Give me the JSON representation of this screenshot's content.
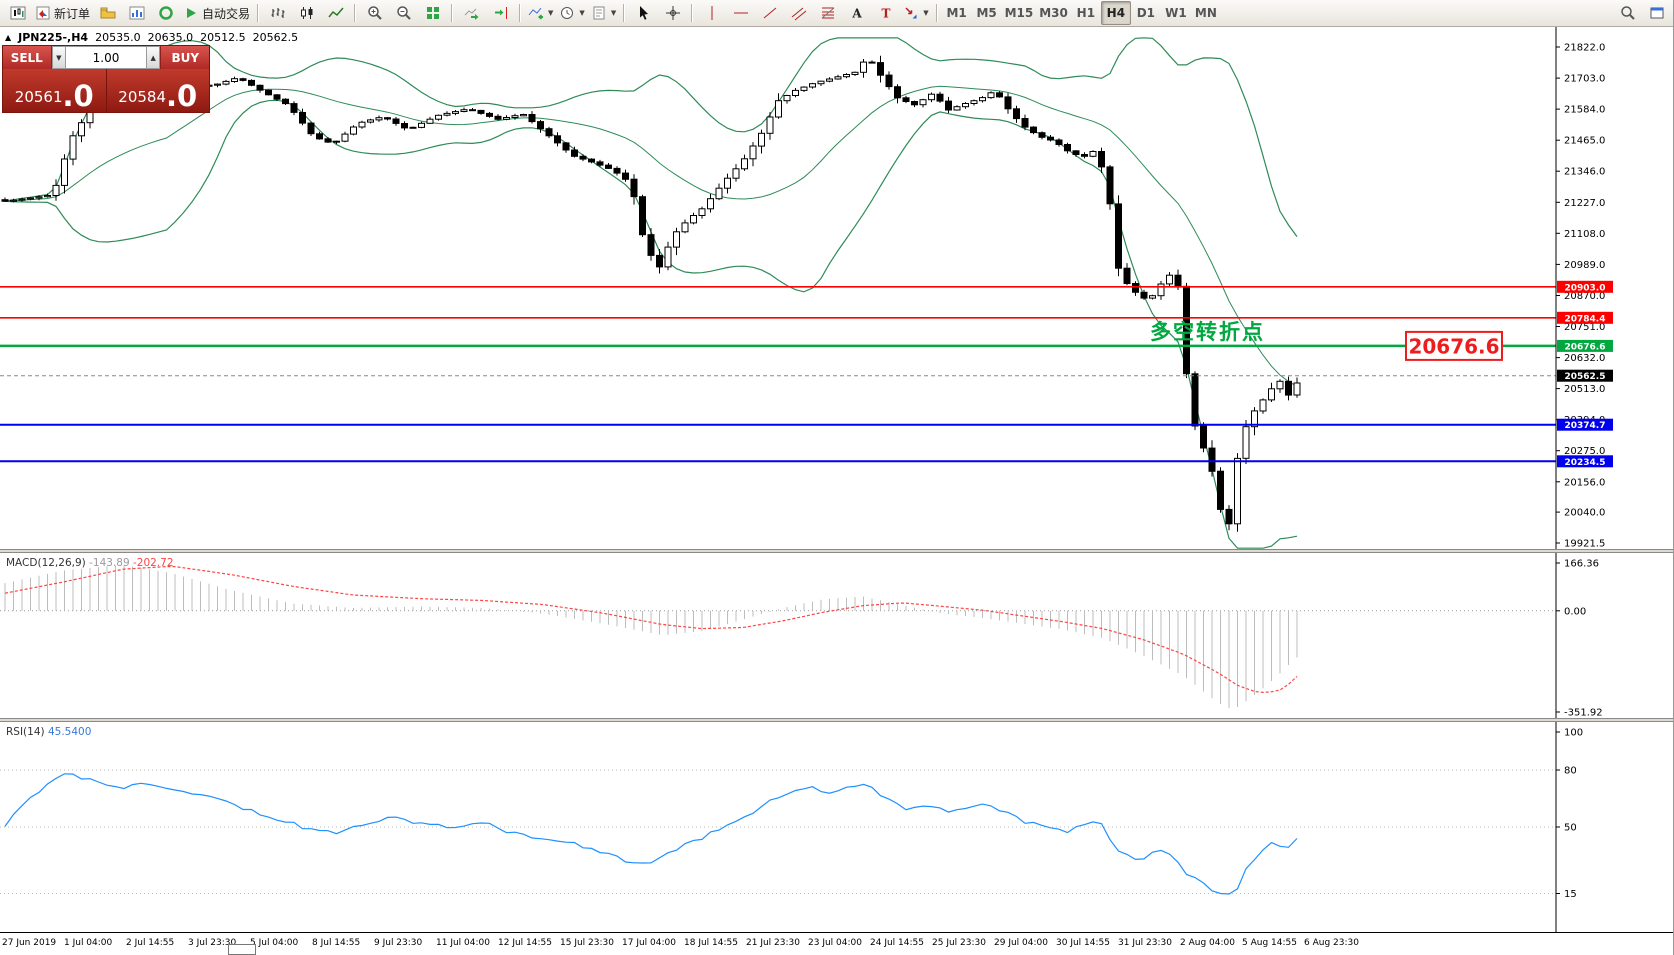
{
  "toolbar": {
    "groups": [
      {
        "name": "file",
        "items": [
          {
            "name": "new-chart",
            "icon": "chart-candles"
          },
          {
            "name": "new-order",
            "icon": "new-order",
            "label": "新订单"
          },
          {
            "name": "profiles",
            "icon": "profiles"
          },
          {
            "name": "data-window",
            "icon": "chart-blue"
          },
          {
            "name": "refresh",
            "icon": "circle-green"
          },
          {
            "name": "auto-trading",
            "icon": "play-green",
            "label": "自动交易"
          }
        ]
      },
      {
        "name": "chart-type",
        "items": [
          {
            "name": "bars-chart",
            "icon": "bars"
          },
          {
            "name": "candlestick-chart",
            "icon": "candles"
          },
          {
            "name": "line-chart",
            "icon": "line"
          }
        ]
      },
      {
        "name": "zoom",
        "items": [
          {
            "name": "zoom-in",
            "icon": "zoom-in"
          },
          {
            "name": "zoom-out",
            "icon": "zoom-out"
          },
          {
            "name": "tile-windows",
            "icon": "grid-green"
          }
        ]
      },
      {
        "name": "scroll",
        "items": [
          {
            "name": "auto-scroll",
            "icon": "auto-scroll"
          },
          {
            "name": "chart-shift",
            "icon": "chart-shift"
          }
        ]
      },
      {
        "name": "insert",
        "items": [
          {
            "name": "indicators",
            "icon": "indicator-plus",
            "dropdown": true
          },
          {
            "name": "periods",
            "icon": "clock",
            "dropdown": true
          },
          {
            "name": "templates",
            "icon": "template",
            "dropdown": true
          }
        ]
      },
      {
        "name": "cursor",
        "items": [
          {
            "name": "cursor",
            "icon": "cursor-arrow"
          },
          {
            "name": "crosshair",
            "icon": "crosshair"
          }
        ]
      },
      {
        "name": "objects",
        "items": [
          {
            "name": "vertical-line",
            "icon": "vline"
          },
          {
            "name": "horizontal-line",
            "icon": "hline"
          },
          {
            "name": "trendline",
            "icon": "trendline"
          },
          {
            "name": "equidistant-channel",
            "icon": "channel"
          },
          {
            "name": "fibonacci",
            "icon": "fibo"
          },
          {
            "name": "text",
            "icon": "text-a"
          },
          {
            "name": "text-label",
            "icon": "text-t"
          },
          {
            "name": "arrows",
            "icon": "arrow-shape",
            "dropdown": true
          }
        ]
      },
      {
        "name": "timeframes",
        "items": [
          {
            "name": "tf-m1",
            "label": "M1"
          },
          {
            "name": "tf-m5",
            "label": "M5"
          },
          {
            "name": "tf-m15",
            "label": "M15"
          },
          {
            "name": "tf-m30",
            "label": "M30"
          },
          {
            "name": "tf-h1",
            "label": "H1"
          },
          {
            "name": "tf-h4",
            "label": "H4",
            "active": true
          },
          {
            "name": "tf-d1",
            "label": "D1"
          },
          {
            "name": "tf-w1",
            "label": "W1"
          },
          {
            "name": "tf-mn",
            "label": "MN"
          }
        ]
      }
    ],
    "right_items": [
      {
        "name": "search",
        "icon": "magnifier"
      },
      {
        "name": "arrange-windows",
        "icon": "window"
      }
    ]
  },
  "symbol_info": {
    "collapse_icon": "▲",
    "symbol_period": "JPN225-,H4",
    "open": "20535.0",
    "high": "20635.0",
    "low": "20512.5",
    "close": "20562.5"
  },
  "trade_panel": {
    "sell_label": "SELL",
    "buy_label": "BUY",
    "volume": "1.00",
    "volume_down_icon": "▼",
    "volume_up_icon": "▲",
    "sell_price_main": "20561",
    "sell_price_big": ".0",
    "buy_price_main": "20584",
    "buy_price_big": ".0"
  },
  "annotations": {
    "turning_point_text": "多空转折点",
    "turning_point_color": "#00a83f",
    "price_tag_text": "20676.6",
    "price_tag_color": "#ee1c1c"
  },
  "chart_data": {
    "main": {
      "type": "candlestick",
      "symbol": "JPN225-",
      "timeframe": "H4",
      "ohlc_current": {
        "open": 20535.0,
        "high": 20635.0,
        "low": 20512.5,
        "close": 20562.5
      },
      "y_axis_range": {
        "top": 21822.0,
        "bottom": 19921.5
      },
      "y_ticks": [
        21822.0,
        21703.0,
        21584.0,
        21465.0,
        21346.0,
        21227.0,
        21108.0,
        20989.0,
        20870.0,
        20751.0,
        20632.0,
        20513.0,
        20394.0,
        20275.0,
        20156.0,
        20040.0,
        19921.5
      ],
      "levels": [
        {
          "name": "resistance-1",
          "value": 20903.0,
          "color": "#ff0000"
        },
        {
          "name": "resistance-2",
          "value": 20784.4,
          "color": "#ff0000"
        },
        {
          "name": "turning-point",
          "value": 20676.6,
          "color": "#00a83f",
          "label": "多空转折点"
        },
        {
          "name": "current-price",
          "value": 20562.5,
          "color": "#000000",
          "type": "current"
        },
        {
          "name": "support-1",
          "value": 20374.7,
          "color": "#0000ee"
        },
        {
          "name": "support-2",
          "value": 20234.5,
          "color": "#0000ee"
        }
      ],
      "bollinger": {
        "period": 20,
        "deviation": 2,
        "color": "#2e8b57"
      },
      "price_path": [
        [
          0,
          21230
        ],
        [
          25,
          21242
        ],
        [
          50,
          21256
        ],
        [
          68,
          21470
        ],
        [
          90,
          21600
        ],
        [
          130,
          21645
        ],
        [
          175,
          21660
        ],
        [
          215,
          21680
        ],
        [
          235,
          21705
        ],
        [
          260,
          21650
        ],
        [
          285,
          21600
        ],
        [
          310,
          21480
        ],
        [
          330,
          21450
        ],
        [
          355,
          21530
        ],
        [
          380,
          21555
        ],
        [
          405,
          21505
        ],
        [
          435,
          21560
        ],
        [
          465,
          21585
        ],
        [
          495,
          21545
        ],
        [
          520,
          21565
        ],
        [
          545,
          21485
        ],
        [
          570,
          21405
        ],
        [
          590,
          21380
        ],
        [
          610,
          21350
        ],
        [
          628,
          21300
        ],
        [
          642,
          21060
        ],
        [
          656,
          20975
        ],
        [
          670,
          21100
        ],
        [
          685,
          21160
        ],
        [
          700,
          21205
        ],
        [
          720,
          21300
        ],
        [
          740,
          21385
        ],
        [
          760,
          21500
        ],
        [
          775,
          21615
        ],
        [
          792,
          21655
        ],
        [
          812,
          21685
        ],
        [
          832,
          21705
        ],
        [
          852,
          21725
        ],
        [
          865,
          21785
        ],
        [
          880,
          21700
        ],
        [
          895,
          21625
        ],
        [
          912,
          21600
        ],
        [
          930,
          21645
        ],
        [
          945,
          21580
        ],
        [
          962,
          21605
        ],
        [
          978,
          21625
        ],
        [
          992,
          21655
        ],
        [
          1006,
          21580
        ],
        [
          1020,
          21520
        ],
        [
          1036,
          21480
        ],
        [
          1052,
          21460
        ],
        [
          1066,
          21420
        ],
        [
          1080,
          21400
        ],
        [
          1094,
          21430
        ],
        [
          1106,
          21250
        ],
        [
          1116,
          20960
        ],
        [
          1126,
          20905
        ],
        [
          1136,
          20870
        ],
        [
          1146,
          20850
        ],
        [
          1156,
          20905
        ],
        [
          1166,
          20950
        ],
        [
          1176,
          20900
        ],
        [
          1186,
          20460
        ],
        [
          1196,
          20310
        ],
        [
          1206,
          20255
        ],
        [
          1216,
          20060
        ],
        [
          1226,
          19995
        ],
        [
          1236,
          20290
        ],
        [
          1246,
          20400
        ],
        [
          1256,
          20450
        ],
        [
          1266,
          20500
        ],
        [
          1276,
          20550
        ],
        [
          1284,
          20480
        ],
        [
          1292,
          20525
        ],
        [
          1300,
          20562.5
        ]
      ]
    },
    "macd": {
      "type": "macd",
      "label": "MACD(12,26,9)",
      "main_value_display": "-143.89",
      "signal_value_display": "-202.72",
      "main_color": "#9a9a9a",
      "signal_color": "#ff4444",
      "histogram_color": "#bdbdbd",
      "y_ticks": [
        166.36,
        0.0,
        -351.92
      ],
      "histogram_path": [
        [
          0,
          95
        ],
        [
          60,
          140
        ],
        [
          120,
          160
        ],
        [
          170,
          130
        ],
        [
          230,
          70
        ],
        [
          290,
          25
        ],
        [
          350,
          10
        ],
        [
          420,
          15
        ],
        [
          480,
          10
        ],
        [
          540,
          -10
        ],
        [
          600,
          -45
        ],
        [
          660,
          -85
        ],
        [
          700,
          -70
        ],
        [
          740,
          -30
        ],
        [
          780,
          10
        ],
        [
          820,
          40
        ],
        [
          860,
          50
        ],
        [
          900,
          20
        ],
        [
          940,
          -10
        ],
        [
          980,
          -25
        ],
        [
          1020,
          -45
        ],
        [
          1060,
          -65
        ],
        [
          1100,
          -95
        ],
        [
          1140,
          -155
        ],
        [
          1180,
          -225
        ],
        [
          1215,
          -320
        ],
        [
          1230,
          -345
        ],
        [
          1245,
          -310
        ],
        [
          1260,
          -270
        ],
        [
          1275,
          -225
        ],
        [
          1288,
          -180
        ],
        [
          1300,
          -143.89
        ]
      ],
      "signal_path": [
        [
          0,
          60
        ],
        [
          60,
          100
        ],
        [
          120,
          145
        ],
        [
          170,
          155
        ],
        [
          230,
          125
        ],
        [
          290,
          85
        ],
        [
          350,
          55
        ],
        [
          420,
          42
        ],
        [
          480,
          36
        ],
        [
          540,
          22
        ],
        [
          600,
          -8
        ],
        [
          660,
          -48
        ],
        [
          700,
          -62
        ],
        [
          740,
          -58
        ],
        [
          780,
          -35
        ],
        [
          820,
          -5
        ],
        [
          860,
          18
        ],
        [
          900,
          28
        ],
        [
          940,
          15
        ],
        [
          980,
          2
        ],
        [
          1020,
          -18
        ],
        [
          1060,
          -38
        ],
        [
          1100,
          -62
        ],
        [
          1140,
          -100
        ],
        [
          1180,
          -150
        ],
        [
          1215,
          -215
        ],
        [
          1235,
          -260
        ],
        [
          1255,
          -285
        ],
        [
          1275,
          -280
        ],
        [
          1290,
          -245
        ],
        [
          1300,
          -202.72
        ]
      ]
    },
    "rsi": {
      "type": "line",
      "label": "RSI(14)",
      "value_display": "45.5400",
      "line_color": "#1e90ff",
      "y_ticks": [
        100,
        80,
        50,
        15
      ],
      "level_lines": [
        80,
        50,
        15
      ],
      "path": [
        [
          0,
          50
        ],
        [
          30,
          66
        ],
        [
          60,
          79
        ],
        [
          90,
          74
        ],
        [
          120,
          71
        ],
        [
          150,
          73
        ],
        [
          180,
          69
        ],
        [
          210,
          67
        ],
        [
          240,
          60
        ],
        [
          270,
          55
        ],
        [
          300,
          50
        ],
        [
          330,
          47
        ],
        [
          360,
          52
        ],
        [
          390,
          55
        ],
        [
          420,
          52
        ],
        [
          450,
          49
        ],
        [
          480,
          52
        ],
        [
          510,
          47
        ],
        [
          540,
          44
        ],
        [
          570,
          41
        ],
        [
          600,
          37
        ],
        [
          625,
          32
        ],
        [
          645,
          30
        ],
        [
          665,
          36
        ],
        [
          685,
          41
        ],
        [
          705,
          46
        ],
        [
          725,
          51
        ],
        [
          745,
          56
        ],
        [
          765,
          63
        ],
        [
          785,
          68
        ],
        [
          805,
          71
        ],
        [
          825,
          68
        ],
        [
          845,
          71
        ],
        [
          865,
          73
        ],
        [
          885,
          64
        ],
        [
          905,
          59
        ],
        [
          925,
          62
        ],
        [
          945,
          57
        ],
        [
          965,
          60
        ],
        [
          985,
          62
        ],
        [
          1005,
          57
        ],
        [
          1025,
          52
        ],
        [
          1045,
          50
        ],
        [
          1065,
          48
        ],
        [
          1082,
          51
        ],
        [
          1096,
          55
        ],
        [
          1110,
          40
        ],
        [
          1125,
          35
        ],
        [
          1140,
          33
        ],
        [
          1155,
          38
        ],
        [
          1170,
          35
        ],
        [
          1185,
          25
        ],
        [
          1200,
          20
        ],
        [
          1215,
          15
        ],
        [
          1230,
          14
        ],
        [
          1245,
          29
        ],
        [
          1258,
          37
        ],
        [
          1270,
          42
        ],
        [
          1282,
          38
        ],
        [
          1292,
          43
        ],
        [
          1300,
          45.54
        ]
      ]
    },
    "x_axis_labels": [
      "27 Jun 2019",
      "1 Jul 04:00",
      "2 Jul 14:55",
      "3 Jul 23:30",
      "5 Jul 04:00",
      "8 Jul 14:55",
      "9 Jul 23:30",
      "11 Jul 04:00",
      "12 Jul 14:55",
      "15 Jul 23:30",
      "17 Jul 04:00",
      "18 Jul 14:55",
      "21 Jul 23:30",
      "23 Jul 04:00",
      "24 Jul 14:55",
      "25 Jul 23:30",
      "29 Jul 04:00",
      "30 Jul 14:55",
      "31 Jul 23:30",
      "2 Aug 04:00",
      "5 Aug 14:55",
      "6 Aug 23:30"
    ]
  }
}
